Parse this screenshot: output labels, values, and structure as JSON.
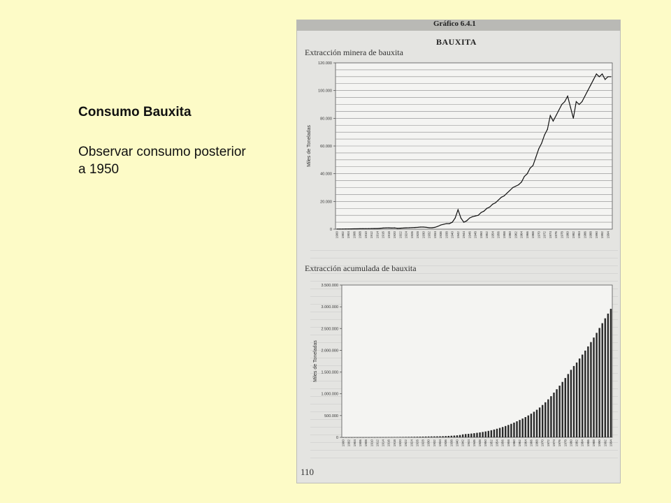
{
  "slide": {
    "title": "Consumo Bauxita",
    "note": "Observar consumo posterior a 1950"
  },
  "scan": {
    "chart_label": "Gráfico 6.4.1",
    "section_title": "BAUXITA",
    "page_number": "110"
  },
  "chart_data": [
    {
      "type": "line",
      "title": "Extracción minera de bauxita",
      "ylabel": "Miles de Toneladas",
      "xlabel": "",
      "grid": true,
      "ylim": [
        0,
        120000
      ],
      "yticks": [
        0,
        20000,
        40000,
        60000,
        80000,
        100000,
        120000
      ],
      "ytick_labels": [
        "0",
        "20.000",
        "40.000",
        "60.000",
        "80.000",
        "100.000",
        "120.000"
      ],
      "x": [
        1900,
        1901,
        1902,
        1903,
        1904,
        1905,
        1906,
        1907,
        1908,
        1909,
        1910,
        1911,
        1912,
        1913,
        1914,
        1915,
        1916,
        1917,
        1918,
        1919,
        1920,
        1921,
        1922,
        1923,
        1924,
        1925,
        1926,
        1927,
        1928,
        1929,
        1930,
        1931,
        1932,
        1933,
        1934,
        1935,
        1936,
        1937,
        1938,
        1939,
        1940,
        1941,
        1942,
        1943,
        1944,
        1945,
        1946,
        1947,
        1948,
        1949,
        1950,
        1951,
        1952,
        1953,
        1954,
        1955,
        1956,
        1957,
        1958,
        1959,
        1960,
        1961,
        1962,
        1963,
        1964,
        1965,
        1966,
        1967,
        1968,
        1969,
        1970,
        1971,
        1972,
        1973,
        1974,
        1975,
        1976,
        1977,
        1978,
        1979,
        1980,
        1981,
        1982,
        1983,
        1984,
        1985,
        1986,
        1987,
        1988,
        1989,
        1990,
        1991,
        1992,
        1993,
        1994,
        1995
      ],
      "values": [
        90,
        100,
        120,
        130,
        160,
        200,
        230,
        250,
        280,
        300,
        330,
        360,
        400,
        440,
        470,
        600,
        800,
        900,
        950,
        800,
        900,
        600,
        700,
        800,
        950,
        1000,
        1100,
        1200,
        1300,
        1500,
        1500,
        1300,
        1000,
        1000,
        1300,
        2000,
        3000,
        3500,
        4000,
        4000,
        5000,
        8000,
        14000,
        8000,
        5000,
        6000,
        8000,
        9000,
        9500,
        10000,
        12000,
        13000,
        15000,
        16000,
        18000,
        19000,
        21000,
        23000,
        24000,
        26000,
        28000,
        30000,
        31000,
        32000,
        34000,
        38000,
        40000,
        44000,
        46000,
        52000,
        58000,
        62000,
        68000,
        72000,
        82000,
        78000,
        82000,
        86000,
        90000,
        92000,
        96000,
        88000,
        80000,
        92000,
        90000,
        92000,
        96000,
        100000,
        104000,
        108000,
        112000,
        110000,
        112000,
        108000,
        110000,
        110000
      ],
      "xtick_labels": [
        "1900",
        "1902",
        "1904",
        "1906",
        "1908",
        "1910",
        "1912",
        "1914",
        "1916",
        "1918",
        "1920",
        "1922",
        "1924",
        "1926",
        "1928",
        "1930",
        "1932",
        "1934",
        "1936",
        "1938",
        "1940",
        "1942",
        "1944",
        "1946",
        "1948",
        "1950",
        "1952",
        "1954",
        "1956",
        "1958",
        "1960",
        "1962",
        "1964",
        "1966",
        "1968",
        "1970",
        "1972",
        "1974",
        "1976",
        "1978",
        "1980",
        "1982",
        "1984",
        "1986",
        "1988",
        "1990",
        "1992",
        "1994"
      ]
    },
    {
      "type": "bar",
      "title": "Extracción acumulada de bauxita",
      "ylabel": "Miles de Toneladas",
      "xlabel": "",
      "grid": false,
      "ylim": [
        0,
        3500000
      ],
      "yticks": [
        0,
        500000,
        1000000,
        1500000,
        2000000,
        2500000,
        3000000,
        3500000
      ],
      "ytick_labels": [
        "0",
        "500.000",
        "1.000.000",
        "1.500.000",
        "2.000.000",
        "2.500.000",
        "3.000.000",
        "3.500.000"
      ],
      "x": [
        1900,
        1901,
        1902,
        1903,
        1904,
        1905,
        1906,
        1907,
        1908,
        1909,
        1910,
        1911,
        1912,
        1913,
        1914,
        1915,
        1916,
        1917,
        1918,
        1919,
        1920,
        1921,
        1922,
        1923,
        1924,
        1925,
        1926,
        1927,
        1928,
        1929,
        1930,
        1931,
        1932,
        1933,
        1934,
        1935,
        1936,
        1937,
        1938,
        1939,
        1940,
        1941,
        1942,
        1943,
        1944,
        1945,
        1946,
        1947,
        1948,
        1949,
        1950,
        1951,
        1952,
        1953,
        1954,
        1955,
        1956,
        1957,
        1958,
        1959,
        1960,
        1961,
        1962,
        1963,
        1964,
        1965,
        1966,
        1967,
        1968,
        1969,
        1970,
        1971,
        1972,
        1973,
        1974,
        1975,
        1976,
        1977,
        1978,
        1979,
        1980,
        1981,
        1982,
        1983,
        1984,
        1985,
        1986,
        1987,
        1988,
        1989,
        1990,
        1991,
        1992,
        1993,
        1994
      ],
      "values": [
        90,
        190,
        310,
        440,
        600,
        800,
        1030,
        1280,
        1560,
        1860,
        2190,
        2550,
        2950,
        3390,
        3860,
        4460,
        5260,
        6160,
        7110,
        7910,
        8810,
        9410,
        10110,
        10910,
        11860,
        12860,
        13960,
        15160,
        16460,
        17960,
        19460,
        20760,
        21760,
        22760,
        24060,
        26060,
        29060,
        32560,
        36560,
        40560,
        45560,
        53560,
        67560,
        75560,
        80560,
        86560,
        94560,
        103560,
        113060,
        123060,
        135060,
        148060,
        163060,
        179060,
        197060,
        216060,
        237060,
        260060,
        284060,
        310060,
        338060,
        368060,
        399060,
        431060,
        465060,
        503060,
        543060,
        587060,
        633060,
        685060,
        743060,
        805060,
        873060,
        945060,
        1027060,
        1105060,
        1187060,
        1273060,
        1363060,
        1455060,
        1551060,
        1639060,
        1719060,
        1811060,
        1901060,
        1993060,
        2089060,
        2189060,
        2293060,
        2401060,
        2513060,
        2623060,
        2735060,
        2843060,
        2953060
      ],
      "xtick_labels": [
        "1900",
        "1902",
        "1904",
        "1906",
        "1908",
        "1910",
        "1912",
        "1914",
        "1916",
        "1918",
        "1920",
        "1922",
        "1924",
        "1926",
        "1928",
        "1930",
        "1932",
        "1934",
        "1936",
        "1938",
        "1940",
        "1942",
        "1944",
        "1946",
        "1948",
        "1950",
        "1952",
        "1954",
        "1956",
        "1958",
        "1960",
        "1962",
        "1964",
        "1966",
        "1968",
        "1970",
        "1972",
        "1974",
        "1976",
        "1978",
        "1980",
        "1982",
        "1984",
        "1986",
        "1988",
        "1990",
        "1992",
        "1994"
      ]
    }
  ]
}
